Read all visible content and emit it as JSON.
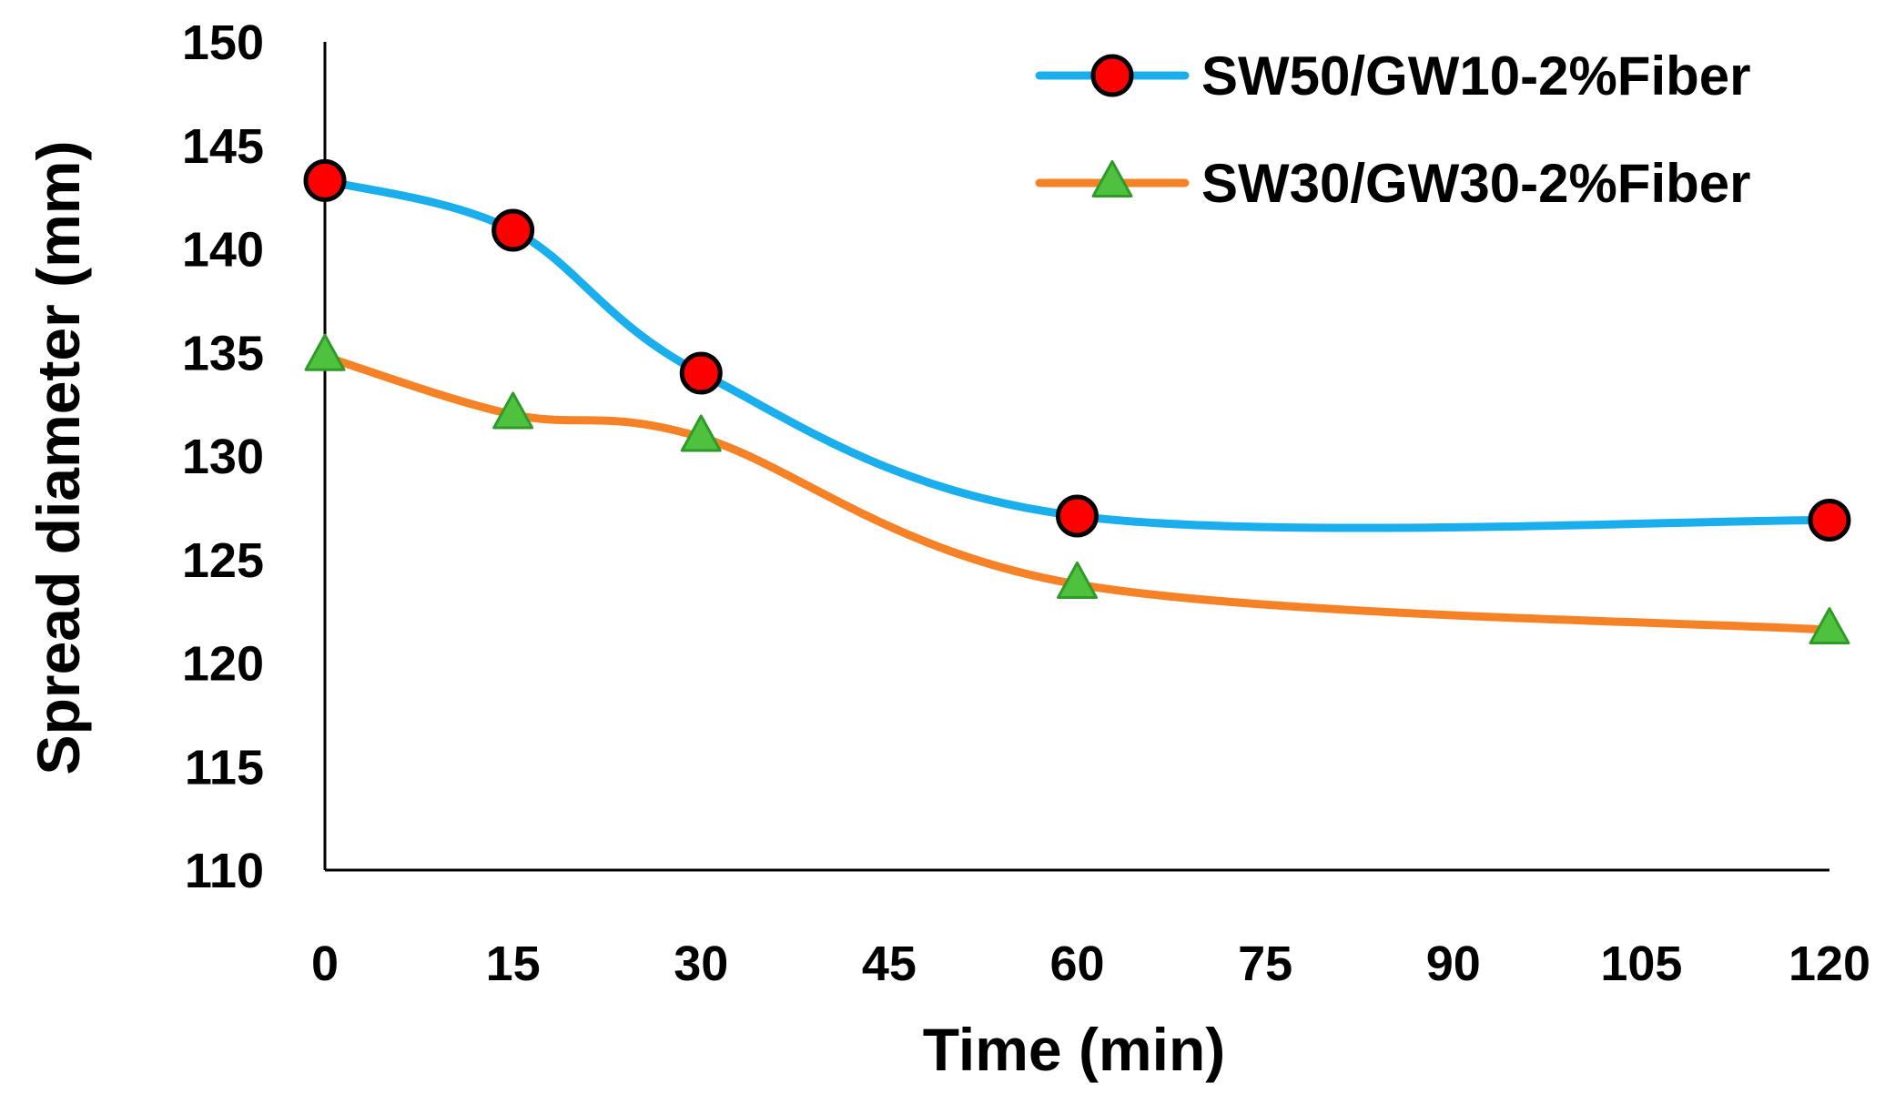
{
  "chart_data": {
    "type": "line",
    "xlabel": "Time (min)",
    "ylabel": "Spread diameter (mm)",
    "xlim": [
      0,
      120
    ],
    "ylim": [
      110,
      150
    ],
    "x_ticks": [
      0,
      15,
      30,
      45,
      60,
      75,
      90,
      105,
      120
    ],
    "y_ticks": [
      110,
      115,
      120,
      125,
      130,
      135,
      140,
      145,
      150
    ],
    "x_tick_labels": [
      "0",
      "15",
      "30",
      "45",
      "60",
      "75",
      "90",
      "105",
      "120"
    ],
    "y_tick_labels": [
      "110",
      "115",
      "120",
      "125",
      "130",
      "135",
      "140",
      "145",
      "150"
    ],
    "legend_position": "top-right",
    "grid": false,
    "smooth": true,
    "series": [
      {
        "name": "SW50/GW10-2%Fiber",
        "x": [
          0,
          15,
          30,
          60,
          120
        ],
        "values": [
          143.3,
          140.9,
          134.0,
          127.1,
          126.9
        ],
        "line_color": "#1aaeec",
        "marker": "circle",
        "marker_fill": "#ff0000",
        "marker_stroke": "#000000"
      },
      {
        "name": "SW30/GW30-2%Fiber",
        "x": [
          0,
          15,
          30,
          60,
          120
        ],
        "values": [
          134.8,
          132.0,
          130.9,
          123.8,
          121.6
        ],
        "line_color": "#f58226",
        "marker": "triangle",
        "marker_fill": "#4ec23e",
        "marker_stroke": "#2f9a28"
      }
    ]
  }
}
